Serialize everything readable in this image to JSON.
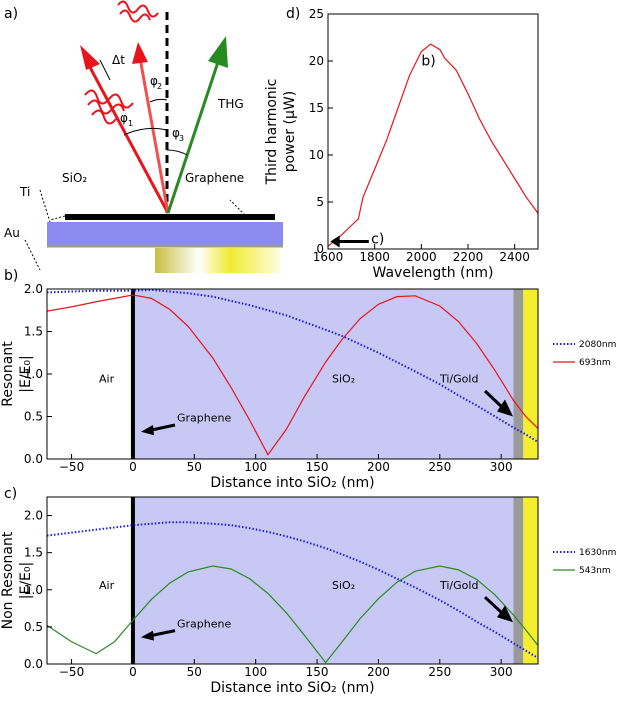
{
  "diagram": {
    "panel": "a)",
    "delay": "Δt",
    "phi1": "φ",
    "phi1_sub": "1",
    "phi2": "φ",
    "phi2_sub": "2",
    "phi3": "φ",
    "phi3_sub": "3",
    "thg": "THG",
    "sio2": "SiO₂",
    "ti": "Ti",
    "au": "Au",
    "graphene": "Graphene"
  },
  "chart_data": [
    {
      "type": "line",
      "panel": "d)",
      "xlabel": "Wavelength (nm)",
      "ylabel": [
        "Third harmonic",
        "power (μW)"
      ],
      "x": [
        1600,
        1650,
        1700,
        1730,
        1750,
        1800,
        1850,
        1900,
        1950,
        2000,
        2040,
        2080,
        2100,
        2150,
        2200,
        2250,
        2300,
        2350,
        2400,
        2450,
        2500
      ],
      "series": [
        {
          "color": "#e8141c",
          "values": [
            0.3,
            1.3,
            2.5,
            3.2,
            5.5,
            8.5,
            11.5,
            15,
            18.5,
            21,
            21.8,
            21.2,
            20.3,
            19,
            16.5,
            13.8,
            11.5,
            9.5,
            7.5,
            5.5,
            3.8
          ]
        }
      ],
      "xlim": [
        1600,
        2500
      ],
      "xticks": [
        1600,
        1800,
        2000,
        2200,
        2400
      ],
      "ylim": [
        0,
        25
      ],
      "yticks": [
        0,
        5,
        10,
        15,
        20,
        25
      ],
      "annotations": [
        "b)",
        "c)"
      ]
    },
    {
      "type": "line",
      "panel": "b)",
      "xlabel": "Distance into SiO₂ (nm)",
      "ylabel": [
        "Resonant",
        "|E/E₀|"
      ],
      "x": [
        -70,
        -50,
        -30,
        -15,
        0,
        15,
        30,
        45,
        65,
        80,
        95,
        110,
        125,
        140,
        157,
        170,
        185,
        200,
        215,
        230,
        250,
        265,
        280,
        295,
        310,
        320,
        330
      ],
      "series": [
        {
          "name": "2080nm",
          "color": "#1a1ae6",
          "linestyle": "dotted",
          "values": [
            1.96,
            1.97,
            1.98,
            1.98,
            1.98,
            1.99,
            1.97,
            1.95,
            1.91,
            1.86,
            1.81,
            1.75,
            1.69,
            1.61,
            1.52,
            1.45,
            1.35,
            1.25,
            1.14,
            1.03,
            0.88,
            0.75,
            0.63,
            0.5,
            0.37,
            0.29,
            0.2
          ]
        },
        {
          "name": "693nm",
          "color": "#e8141c",
          "linestyle": "solid",
          "values": [
            1.74,
            1.79,
            1.85,
            1.89,
            1.93,
            1.89,
            1.76,
            1.56,
            1.19,
            0.84,
            0.46,
            0.05,
            0.35,
            0.74,
            1.14,
            1.4,
            1.65,
            1.82,
            1.91,
            1.92,
            1.8,
            1.62,
            1.36,
            1.04,
            0.69,
            0.5,
            0.36
          ]
        }
      ],
      "xlim": [
        -70,
        330
      ],
      "xticks": [
        {
          "value": -50,
          "label": "−50"
        },
        0,
        50,
        100,
        150,
        200,
        250,
        300
      ],
      "ylim": [
        0,
        2.0
      ],
      "yticks": [
        {
          "value": 0,
          "label": "0.0"
        },
        {
          "value": 0.5,
          "label": "0.5"
        },
        {
          "value": 1,
          "label": "1.0"
        },
        {
          "value": 1.5,
          "label": "1.5"
        },
        {
          "value": 2,
          "label": "2.0"
        }
      ],
      "regions": [
        {
          "from": 0,
          "to": 310,
          "color": "#c8c8f5"
        },
        {
          "from": 310,
          "to": 318,
          "color": "#9a9a9a"
        },
        {
          "from": 318,
          "to": 330,
          "color": "#f4ee2e"
        }
      ],
      "annotations": {
        "air": "Air",
        "sio2": "SiO₂",
        "tigold": "Ti/Gold",
        "graphene": "Graphene"
      },
      "legend": "right"
    },
    {
      "type": "line",
      "panel": "c)",
      "xlabel": "Distance into SiO₂ (nm)",
      "ylabel": [
        "Non Resonant",
        "|E/E₀|"
      ],
      "x": [
        -70,
        -50,
        -30,
        -15,
        0,
        15,
        30,
        45,
        65,
        80,
        95,
        110,
        125,
        140,
        157,
        170,
        185,
        200,
        215,
        230,
        250,
        265,
        280,
        295,
        310,
        320,
        330
      ],
      "series": [
        {
          "name": "1630nm",
          "color": "#1a1ae6",
          "linestyle": "dotted",
          "values": [
            1.73,
            1.77,
            1.81,
            1.84,
            1.87,
            1.89,
            1.91,
            1.91,
            1.89,
            1.87,
            1.83,
            1.78,
            1.72,
            1.65,
            1.56,
            1.48,
            1.38,
            1.27,
            1.15,
            1.03,
            0.86,
            0.72,
            0.57,
            0.43,
            0.28,
            0.18,
            0.08
          ]
        },
        {
          "name": "543nm",
          "color": "#2a8a22",
          "linestyle": "solid",
          "values": [
            0.52,
            0.3,
            0.14,
            0.3,
            0.59,
            0.87,
            1.09,
            1.24,
            1.32,
            1.28,
            1.15,
            0.95,
            0.69,
            0.38,
            0.02,
            0.29,
            0.61,
            0.88,
            1.1,
            1.25,
            1.32,
            1.27,
            1.14,
            0.93,
            0.66,
            0.46,
            0.25
          ]
        }
      ],
      "xlim": [
        -70,
        330
      ],
      "xticks": [
        {
          "value": -50,
          "label": "−50"
        },
        0,
        50,
        100,
        150,
        200,
        250,
        300
      ],
      "ylim": [
        0,
        2.25
      ],
      "yticks": [
        {
          "value": 0,
          "label": "0.0"
        },
        {
          "value": 0.5,
          "label": "0.5"
        },
        {
          "value": 1,
          "label": "1.0"
        },
        {
          "value": 1.5,
          "label": "1.5"
        },
        {
          "value": 2,
          "label": "2.0"
        }
      ],
      "regions": [
        {
          "from": 0,
          "to": 310,
          "color": "#c8c8f5"
        },
        {
          "from": 310,
          "to": 318,
          "color": "#9a9a9a"
        },
        {
          "from": 318,
          "to": 330,
          "color": "#f4ee2e"
        }
      ],
      "annotations": {
        "air": "Air",
        "sio2": "SiO₂",
        "tigold": "Ti/Gold",
        "graphene": "Graphene"
      },
      "legend": "right"
    }
  ]
}
